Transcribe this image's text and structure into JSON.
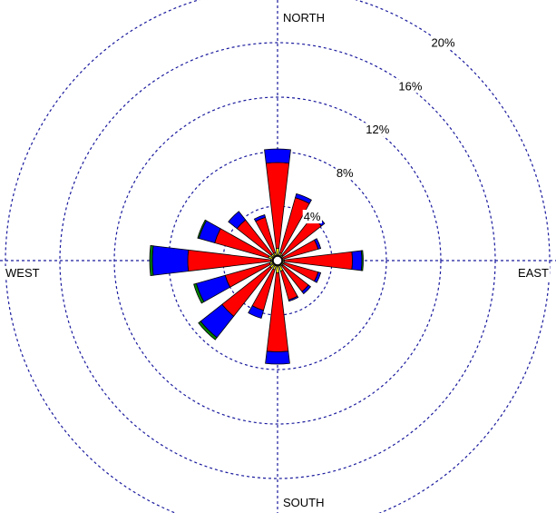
{
  "chart_data": {
    "type": "wind-rose",
    "title": "",
    "unit": "%",
    "directions": [
      "N",
      "NNE",
      "NE",
      "ENE",
      "E",
      "ESE",
      "SE",
      "SSE",
      "S",
      "SSW",
      "SW",
      "WSW",
      "W",
      "WNW",
      "NW",
      "NNW"
    ],
    "direction_labels": {
      "north": "NORTH",
      "east": "EAST",
      "south": "SOUTH",
      "west": "WEST"
    },
    "ring_labels": [
      "4%",
      "8%",
      "12%",
      "16%",
      "20%"
    ],
    "rings": [
      4,
      8,
      12,
      16,
      20
    ],
    "rmax": 20,
    "series": [
      {
        "values": [
          0.9,
          0.6,
          0.5,
          0.4,
          0.5,
          0.5,
          0.5,
          0.8,
          0.9,
          0.7,
          0.7,
          0.6,
          0.5,
          0.7,
          0.6,
          0.6
        ],
        "color": "#ffff00"
      },
      {
        "values": [
          6.3,
          4.2,
          3.6,
          2.7,
          5.0,
          2.6,
          2.4,
          2.2,
          5.8,
          3.1,
          4.5,
          3.4,
          6.1,
          4.1,
          3.2,
          2.7
        ],
        "color": "#ff0000"
      },
      {
        "values": [
          1.0,
          0.3,
          0.3,
          0.2,
          0.7,
          0.2,
          0.2,
          0.1,
          0.9,
          0.6,
          2.0,
          2.2,
          2.6,
          1.2,
          0.8,
          0.2
        ],
        "color": "#0000ff"
      },
      {
        "values": [
          0.0,
          0.0,
          0.0,
          0.0,
          0.1,
          0.0,
          0.0,
          0.0,
          0.0,
          0.0,
          0.2,
          0.2,
          0.2,
          0.1,
          0.0,
          0.0
        ],
        "color": "#008000"
      }
    ],
    "calm_circle": true,
    "grid": true
  }
}
